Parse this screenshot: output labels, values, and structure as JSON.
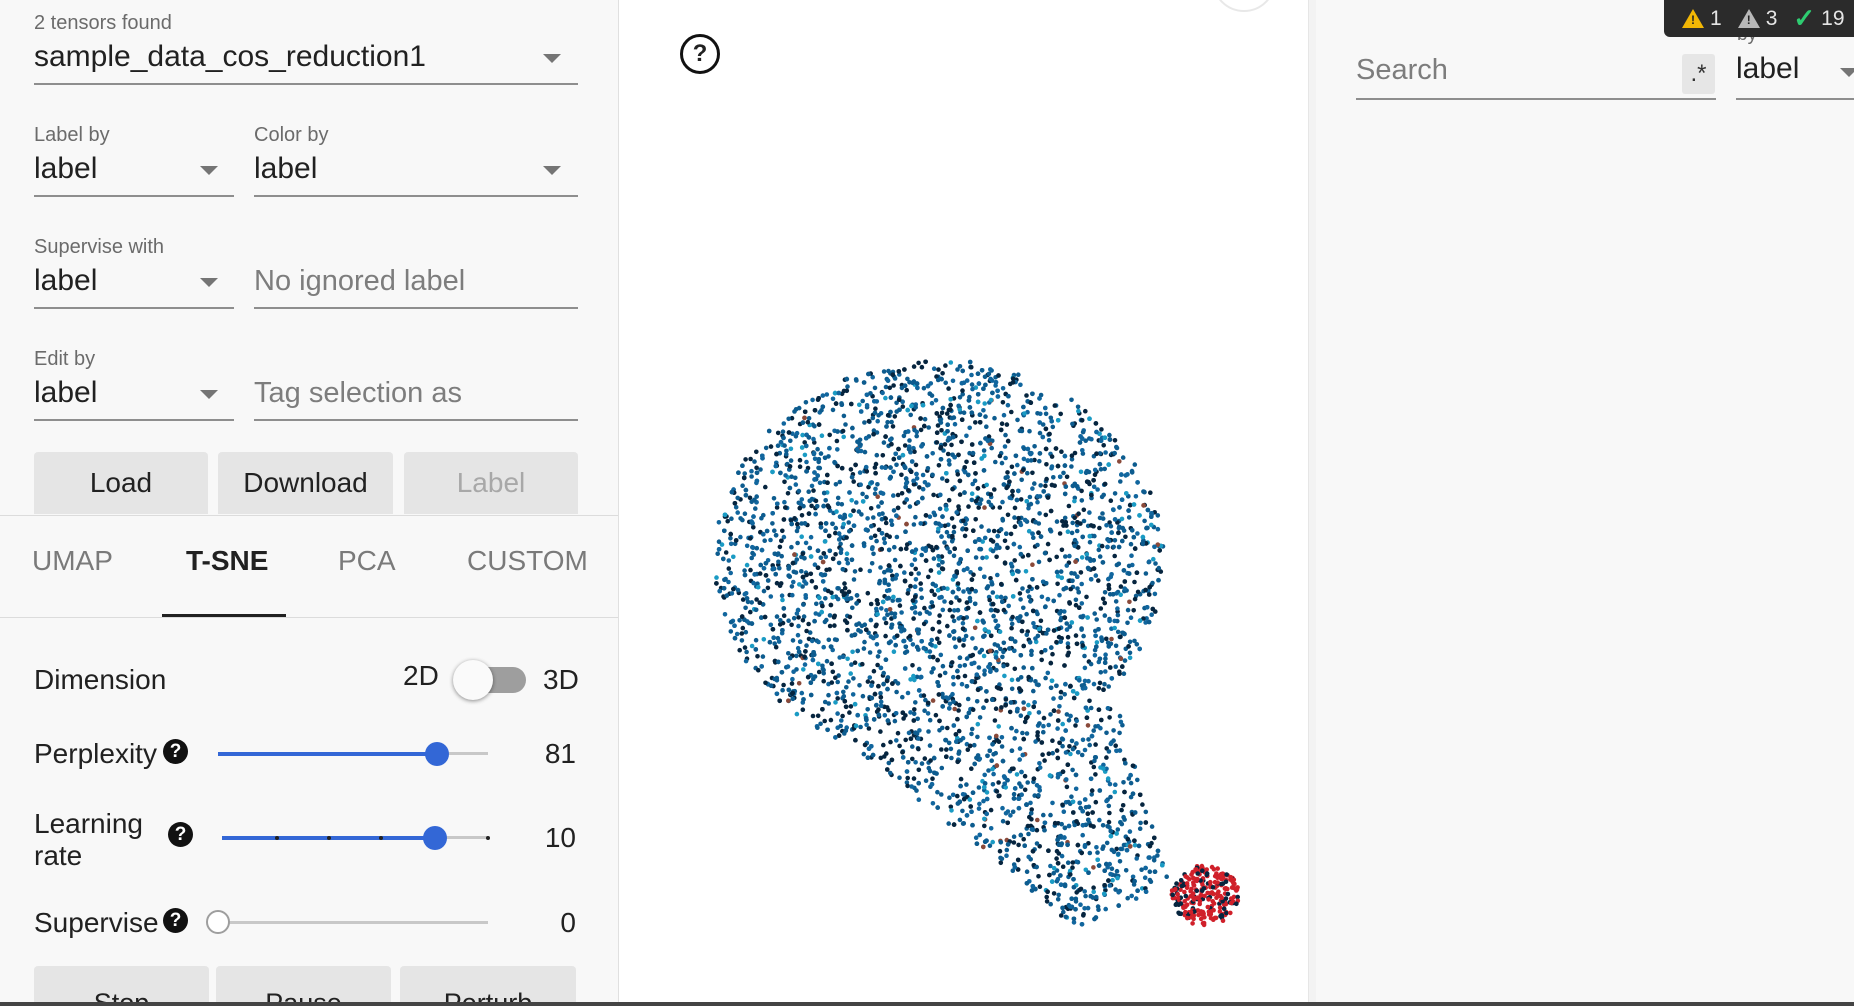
{
  "tensors": {
    "found_label": "2 tensors found",
    "selected": "sample_data_cos_reduction1"
  },
  "label_by": {
    "label": "Label by",
    "value": "label"
  },
  "color_by": {
    "label": "Color by",
    "value": "label"
  },
  "supervise_with": {
    "label": "Supervise with",
    "value": "label"
  },
  "ignored_label": {
    "placeholder": "No ignored label"
  },
  "edit_by": {
    "label": "Edit by",
    "value": "label"
  },
  "tag_selection": {
    "placeholder": "Tag selection as"
  },
  "buttons": {
    "load": "Load",
    "download": "Download",
    "label": "Label"
  },
  "tabs": [
    "UMAP",
    "T-SNE",
    "PCA",
    "CUSTOM"
  ],
  "active_tab": "T-SNE",
  "tsne": {
    "dimension": {
      "label": "Dimension",
      "left": "2D",
      "right": "3D",
      "value": "2D"
    },
    "perplexity": {
      "label": "Perplexity",
      "value": "81",
      "fraction": 0.81
    },
    "learning_rate": {
      "label_line1": "Learning",
      "label_line2": "rate",
      "value": "10",
      "fraction": 0.8
    },
    "supervise": {
      "label": "Supervise",
      "value": "0",
      "fraction": 0.0
    },
    "actions": {
      "stop": "Stop",
      "pause": "Pause",
      "perturb": "Perturb"
    }
  },
  "help_glyph": "?",
  "right_panel": {
    "search_placeholder": "Search",
    "regex_label": ".*",
    "by_label": "by",
    "by_value": "label"
  },
  "status_bar": {
    "warnings": "1",
    "alerts": "3",
    "checks": "19"
  },
  "colors": {
    "accent": "#3367d6",
    "point_main": "#0d5c8f",
    "point_dark": "#06253f",
    "point_cyan": "#1a9bc4",
    "point_red": "#d0202a",
    "point_brown": "#8a4a3a"
  }
}
